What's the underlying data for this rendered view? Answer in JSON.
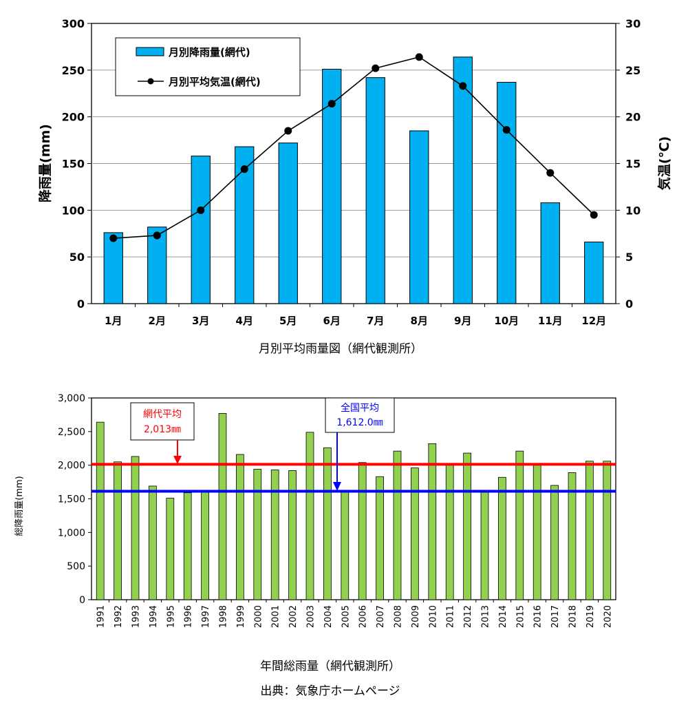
{
  "chart_data": [
    {
      "type": "bar",
      "caption": "月別平均雨量図（網代観測所）",
      "categories": [
        "1月",
        "2月",
        "3月",
        "4月",
        "5月",
        "6月",
        "7月",
        "8月",
        "9月",
        "10月",
        "11月",
        "12月"
      ],
      "ylabel": "降雨量(mm)",
      "ylim": [
        0,
        300
      ],
      "yticks": [
        "0",
        "50",
        "100",
        "150",
        "200",
        "250",
        "300"
      ],
      "y2label": "気温(℃)",
      "y2lim": [
        0,
        30
      ],
      "y2ticks": [
        "0",
        "5",
        "10",
        "15",
        "20",
        "25",
        "30"
      ],
      "grid": true,
      "legend_position": "top-left",
      "series": [
        {
          "name": "月別降雨量(網代)",
          "type": "bar",
          "axis": "left",
          "color": "#00b0f0",
          "values": [
            76,
            82,
            158,
            168,
            172,
            251,
            242,
            185,
            264,
            237,
            108,
            66
          ]
        },
        {
          "name": "月別平均気温(網代)",
          "type": "line",
          "axis": "right",
          "color": "#000000",
          "values": [
            7.0,
            7.3,
            10.0,
            14.4,
            18.5,
            21.4,
            25.2,
            26.4,
            23.3,
            18.6,
            14.0,
            9.5
          ]
        }
      ]
    },
    {
      "type": "bar",
      "caption": "年間総雨量（網代観測所）",
      "categories": [
        "1991",
        "1992",
        "1993",
        "1994",
        "1995",
        "1996",
        "1997",
        "1998",
        "1999",
        "2000",
        "2001",
        "2002",
        "2003",
        "2004",
        "2005",
        "2006",
        "2007",
        "2008",
        "2009",
        "2010",
        "2011",
        "2012",
        "2013",
        "2014",
        "2015",
        "2016",
        "2017",
        "2018",
        "2019",
        "2020"
      ],
      "ylabel": "総降雨量(mm)",
      "ylim": [
        0,
        3000
      ],
      "yticks": [
        "0",
        "500",
        "1,000",
        "1,500",
        "2,000",
        "2,500",
        "3,000"
      ],
      "grid": false,
      "series": [
        {
          "type": "bar",
          "color": "#92d050",
          "values": [
            2640,
            2050,
            2130,
            1690,
            1510,
            1590,
            1600,
            2770,
            2160,
            1940,
            1930,
            1920,
            2490,
            2260,
            1610,
            2040,
            1830,
            2210,
            1960,
            2320,
            2020,
            2180,
            1600,
            1820,
            2210,
            2000,
            1700,
            1890,
            2060,
            2060
          ]
        }
      ],
      "reference_lines": [
        {
          "label": "網代平均",
          "value_text": "2,013㎜",
          "value": 2013,
          "color": "#ff0000"
        },
        {
          "label": "全国平均",
          "value_text": "1,612.0㎜",
          "value": 1612,
          "color": "#0000ff"
        }
      ]
    }
  ],
  "source": "出典：気象庁ホームページ"
}
